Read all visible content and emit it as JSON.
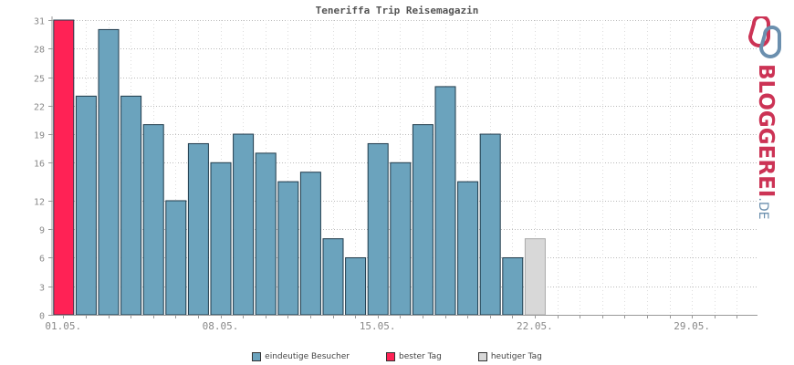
{
  "chart_data": {
    "type": "bar",
    "title": "Teneriffa Trip Reisemagazin",
    "yticks": [
      0,
      3,
      6,
      9,
      12,
      16,
      19,
      22,
      25,
      28,
      31
    ],
    "ylim": [
      0,
      31
    ],
    "xtick_labels": [
      {
        "day": 1,
        "label": "01.05."
      },
      {
        "day": 8,
        "label": "08.05."
      },
      {
        "day": 15,
        "label": "15.05."
      },
      {
        "day": 22,
        "label": "22.05."
      },
      {
        "day": 29,
        "label": "29.05."
      }
    ],
    "days_in_month": 31,
    "values": [
      31,
      23,
      30,
      23,
      20,
      12,
      18,
      16,
      19,
      17,
      14,
      15,
      8,
      6,
      18,
      16,
      20,
      24,
      14,
      19,
      6,
      8
    ],
    "categories": [
      "01.05.",
      "02.05.",
      "03.05.",
      "04.05.",
      "05.05.",
      "06.05.",
      "07.05.",
      "08.05.",
      "09.05.",
      "10.05.",
      "11.05.",
      "12.05.",
      "13.05.",
      "14.05.",
      "15.05.",
      "16.05.",
      "17.05.",
      "18.05.",
      "19.05.",
      "20.05.",
      "21.05.",
      "22.05."
    ],
    "best_day_index": 0,
    "today_index": 21,
    "grid": true,
    "legend_position": "bottom",
    "colors": {
      "visitors": "#6ba3bd",
      "best": "#ff2255",
      "today": "#d8d8d8",
      "bar_stroke": "#1f3a4a",
      "today_stroke": "#aaaaaa"
    },
    "legend": [
      {
        "key": "visitors",
        "label": "eindeutige Besucher"
      },
      {
        "key": "best",
        "label": "bester Tag"
      },
      {
        "key": "today",
        "label": "heutiger Tag"
      }
    ]
  },
  "logo": {
    "brand": "BLOGGEREI",
    "tld": ".DE"
  }
}
